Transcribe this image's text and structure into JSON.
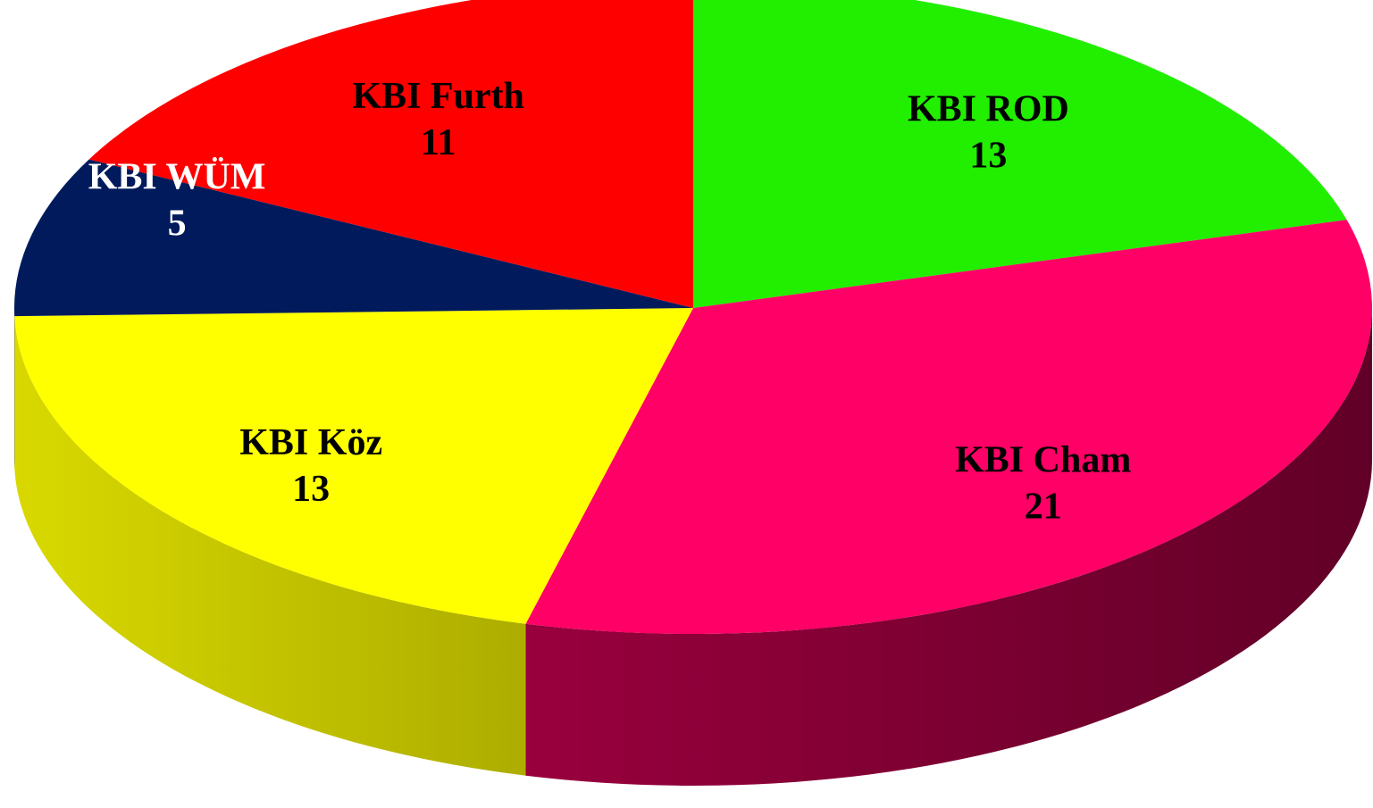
{
  "chart_data": {
    "type": "pie",
    "three_d": true,
    "categories": [
      "KBI ROD",
      "KBI Cham",
      "KBI Köz",
      "KBI WÜM",
      "KBI Furth"
    ],
    "values": [
      13,
      21,
      13,
      5,
      11
    ],
    "colors": [
      "#22ee00",
      "#ff0066",
      "#ffff00",
      "#001a5c",
      "#ff0000"
    ],
    "label_colors": [
      "#000000",
      "#000000",
      "#000000",
      "#ffffff",
      "#000000"
    ]
  }
}
